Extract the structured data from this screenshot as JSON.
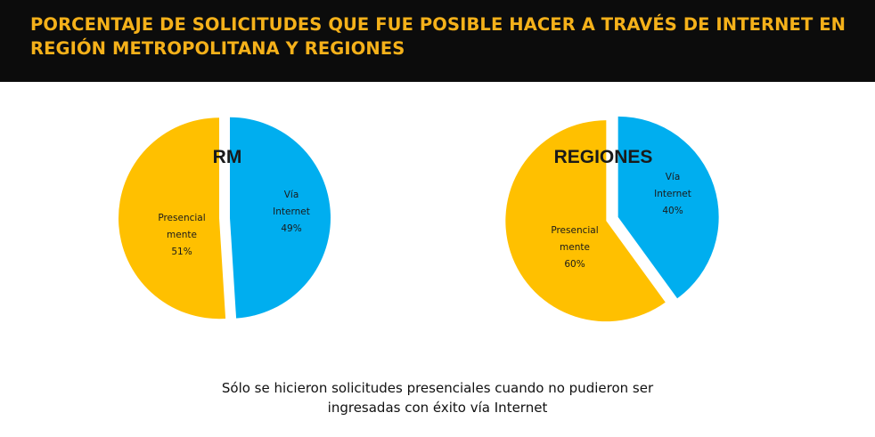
{
  "header": {
    "title_line1": "PORCENTAJE DE SOLICITUDES QUE FUE POSIBLE HACER A TRAVÉS DE INTERNET EN",
    "title_line2": "REGIÓN METROPOLITANA Y REGIONES",
    "background": "#0c0c0c",
    "color": "#f5b11a"
  },
  "chart_data": [
    {
      "type": "pie",
      "title": "RM",
      "slices": [
        {
          "label_lines": [
            "Vía",
            "Internet"
          ],
          "value_label": "49%",
          "value": 49,
          "color": "#00aeef"
        },
        {
          "label_lines": [
            "Presencial",
            "mente"
          ],
          "value_label": "51%",
          "value": 51,
          "color": "#ffc000"
        }
      ]
    },
    {
      "type": "pie",
      "title": "REGIONES",
      "slices": [
        {
          "label_lines": [
            "Vía",
            "Internet"
          ],
          "value_label": "40%",
          "value": 40,
          "color": "#00aeef"
        },
        {
          "label_lines": [
            "Presencial",
            "mente"
          ],
          "value_label": "60%",
          "value": 60,
          "color": "#ffc000"
        }
      ]
    }
  ],
  "footnote": {
    "line1": "Sólo se hicieron solicitudes presenciales cuando no pudieron ser",
    "line2": "ingresadas con éxito vía Internet"
  }
}
